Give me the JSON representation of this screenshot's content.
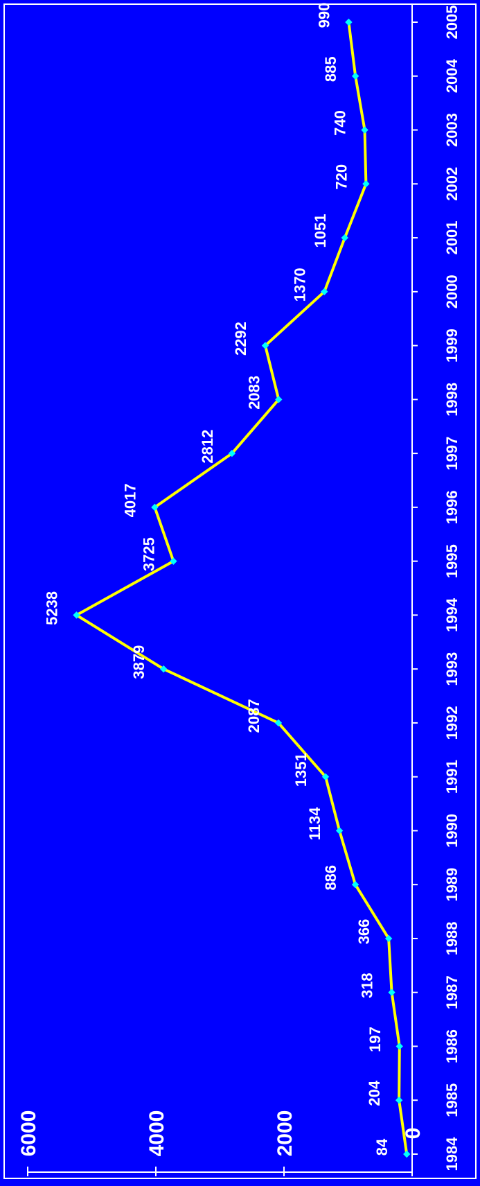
{
  "chart_data": {
    "type": "line",
    "title": "",
    "xlabel": "",
    "ylabel": "",
    "orientation": "rotated-90-clockwise",
    "ylim": [
      0,
      6000
    ],
    "y_ticks": [
      "0",
      "2000",
      "4000",
      "6000"
    ],
    "categories": [
      "1984",
      "1985",
      "1986",
      "1987",
      "1988",
      "1989",
      "1990",
      "1991",
      "1992",
      "1993",
      "1994",
      "1995",
      "1996",
      "1997",
      "1998",
      "1999",
      "2000",
      "2001",
      "2002",
      "2003",
      "2004",
      "2005"
    ],
    "series": [
      {
        "values": [
          84,
          204,
          197,
          318,
          366,
          886,
          1134,
          1351,
          2087,
          3879,
          5238,
          3725,
          4017,
          2812,
          2083,
          2292,
          1370,
          1051,
          720,
          740,
          885,
          990
        ],
        "labels": [
          "84",
          "204",
          "197",
          "318",
          "366",
          "886",
          "1134",
          "1351",
          "2087",
          "3879",
          "5238",
          "3725",
          "4017",
          "2812",
          "2083",
          "2292",
          "1370",
          "1051",
          "720",
          "740",
          "885",
          "990"
        ]
      }
    ],
    "colors": {
      "background": "#0000FF",
      "line": "#FFFF00",
      "marker": "#00FFFF",
      "text": "#FFFFFF",
      "axis": "#FFFFFF"
    },
    "grid": false,
    "legend": "none"
  }
}
